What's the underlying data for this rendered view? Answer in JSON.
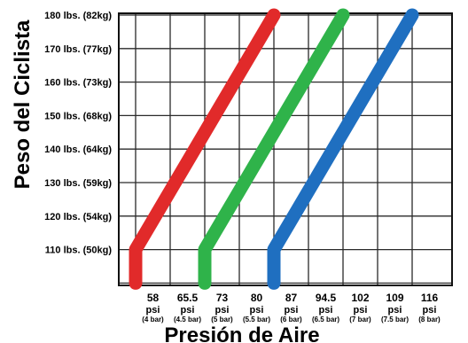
{
  "chart_data": {
    "type": "line",
    "title": "",
    "xlabel": "Presión de Aire",
    "ylabel": "Peso del Ciclista",
    "x_ticks": [
      {
        "value": 58,
        "label": "58",
        "unit": "psi",
        "bar": "(4 bar)"
      },
      {
        "value": 65.5,
        "label": "65.5",
        "unit": "psi",
        "bar": "(4.5 bar)"
      },
      {
        "value": 73,
        "label": "73",
        "unit": "psi",
        "bar": "(5 bar)"
      },
      {
        "value": 80,
        "label": "80",
        "unit": "psi",
        "bar": "(5.5 bar)"
      },
      {
        "value": 87,
        "label": "87",
        "unit": "psi",
        "bar": "(6 bar)"
      },
      {
        "value": 94.5,
        "label": "94.5",
        "unit": "psi",
        "bar": "(6.5 bar)"
      },
      {
        "value": 102,
        "label": "102",
        "unit": "psi",
        "bar": "(7 bar)"
      },
      {
        "value": 109,
        "label": "109",
        "unit": "psi",
        "bar": "(7.5 bar)"
      },
      {
        "value": 116,
        "label": "116",
        "unit": "psi",
        "bar": "(8 bar)"
      }
    ],
    "y_ticks": [
      {
        "value": 110,
        "label": "110 lbs. (50kg)"
      },
      {
        "value": 120,
        "label": "120 lbs. (54kg)"
      },
      {
        "value": 130,
        "label": "130 lbs. (59kg)"
      },
      {
        "value": 140,
        "label": "140 lbs. (64kg)"
      },
      {
        "value": 150,
        "label": "150 lbs. (68kg)"
      },
      {
        "value": 160,
        "label": "160 lbs. (73kg)"
      },
      {
        "value": 170,
        "label": "170 lbs. (77kg)"
      },
      {
        "value": 180,
        "label": "180 lbs. (82kg)"
      }
    ],
    "ylim": [
      100,
      180
    ],
    "grid": true,
    "series": [
      {
        "color": "#e12a2a",
        "points": [
          [
            58,
            100
          ],
          [
            58,
            110
          ],
          [
            87,
            180
          ]
        ]
      },
      {
        "color": "#2fb34a",
        "points": [
          [
            73,
            100
          ],
          [
            73,
            110
          ],
          [
            102,
            180
          ]
        ]
      },
      {
        "color": "#1f6fc0",
        "points": [
          [
            87,
            100
          ],
          [
            87,
            110
          ],
          [
            116,
            180
          ]
        ]
      }
    ]
  }
}
